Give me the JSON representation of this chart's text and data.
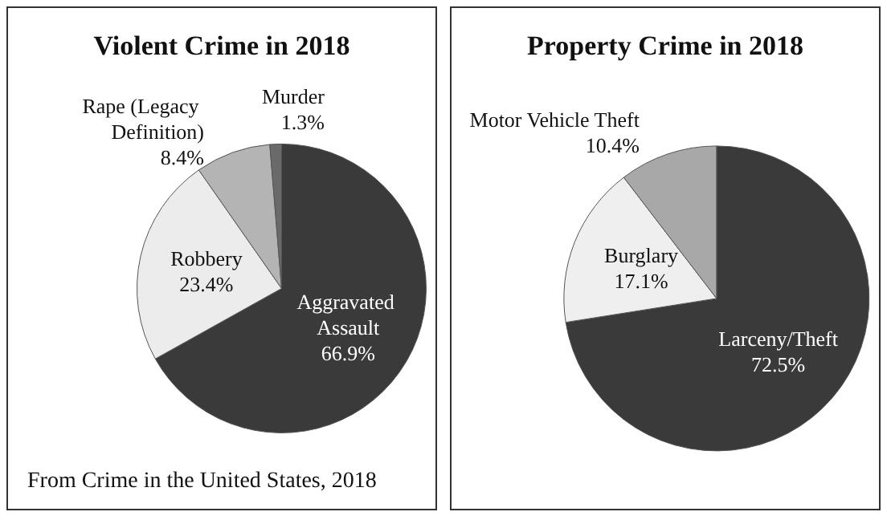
{
  "chart_data": [
    {
      "type": "pie",
      "title": "Violent Crime in 2018",
      "categories": [
        "Aggravated Assault",
        "Robbery",
        "Rape (Legacy Definition)",
        "Murder"
      ],
      "values": [
        66.9,
        23.4,
        8.4,
        1.3
      ],
      "value_labels": [
        "66.9%",
        "23.4%",
        "8.4%",
        "1.3%"
      ],
      "colors": [
        "#3a3a3a",
        "#ececec",
        "#b4b4b4",
        "#6a6a6a"
      ],
      "legend": false,
      "annotations": [
        "From Crime in the United States, 2018"
      ]
    },
    {
      "type": "pie",
      "title": "Property Crime in 2018",
      "categories": [
        "Larceny/Theft",
        "Burglary",
        "Motor Vehicle Theft"
      ],
      "values": [
        72.5,
        17.1,
        10.4
      ],
      "value_labels": [
        "72.5%",
        "17.1%",
        "10.4%"
      ],
      "colors": [
        "#3a3a3a",
        "#efefef",
        "#a8a8a8"
      ],
      "legend": false
    }
  ]
}
